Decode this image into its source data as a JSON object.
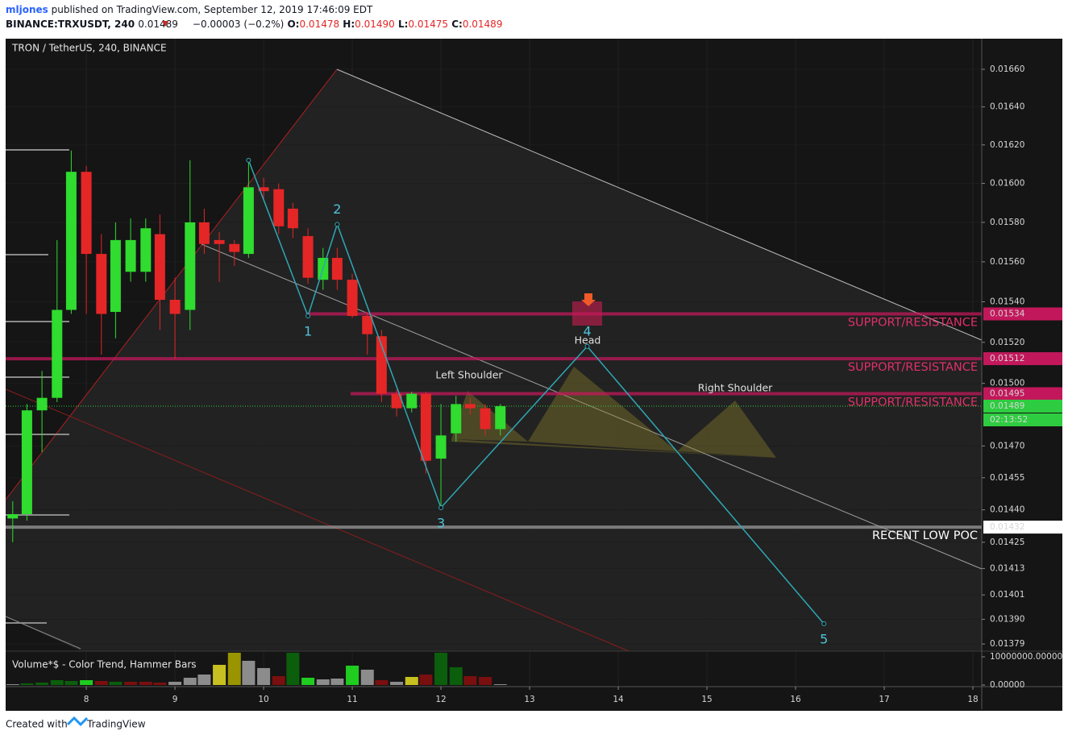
{
  "header": {
    "user": "mljones",
    "published": "published on TradingView.com, September 12, 2019 17:46:09 EDT",
    "symbol": "BINANCE:TRXUSDT, 240",
    "last": "0.01489",
    "change": "−0.00003 (−0.2%)",
    "o_label": "O:",
    "o": "0.01478",
    "h_label": "H:",
    "h": "0.01490",
    "l_label": "L:",
    "l": "0.01475",
    "c_label": "C:",
    "c": "0.01489"
  },
  "footer": {
    "created": "Created with",
    "brand": "TradingView"
  },
  "chart_data": {
    "type": "candlestick",
    "title": "TRON / TetherUS, 240, BINANCE",
    "x": [
      7.17,
      7.33,
      7.5,
      7.67,
      7.83,
      8,
      8.17,
      8.33,
      8.5,
      8.67,
      8.83,
      9,
      9.17,
      9.33,
      9.5,
      9.67,
      9.83,
      10,
      10.17,
      10.33,
      10.5,
      10.67,
      10.83,
      11,
      11.17,
      11.33,
      11.5,
      11.67,
      11.83,
      12,
      12.17,
      12.33,
      12.5,
      12.67
    ],
    "open": [
      0.01436,
      0.01438,
      0.01487,
      0.01493,
      0.01536,
      0.01606,
      0.01564,
      0.01535,
      0.01555,
      0.01555,
      0.01574,
      0.01541,
      0.01536,
      0.0158,
      0.01571,
      0.01569,
      0.01564,
      0.01598,
      0.01597,
      0.01587,
      0.01573,
      0.01551,
      0.01562,
      0.01551,
      0.01533,
      0.01523,
      0.01495,
      0.01488,
      0.01495,
      0.01464,
      0.01476,
      0.0149,
      0.01488,
      0.01478
    ],
    "high": [
      0.01444,
      0.0149,
      0.01506,
      0.01571,
      0.01617,
      0.01609,
      0.01574,
      0.0158,
      0.01582,
      0.01582,
      0.01584,
      0.01552,
      0.01612,
      0.01587,
      0.01575,
      0.01571,
      0.01613,
      0.01603,
      0.016,
      0.0159,
      0.01577,
      0.01567,
      0.01567,
      0.01554,
      0.01535,
      0.01526,
      0.01497,
      0.01496,
      0.01496,
      0.0149,
      0.01494,
      0.01493,
      0.0149,
      0.0149
    ],
    "low": [
      0.01425,
      0.01435,
      0.01467,
      0.01491,
      0.01534,
      0.01534,
      0.01514,
      0.01522,
      0.0155,
      0.0155,
      0.01526,
      0.01512,
      0.01526,
      0.01564,
      0.0155,
      0.01558,
      0.01562,
      0.01591,
      0.01574,
      0.01572,
      0.01549,
      0.01546,
      0.01546,
      0.01532,
      0.01514,
      0.01491,
      0.01484,
      0.01486,
      0.01457,
      0.01442,
      0.01472,
      0.01485,
      0.01475,
      0.01475
    ],
    "close": [
      0.01438,
      0.01487,
      0.01493,
      0.01536,
      0.01606,
      0.01564,
      0.01534,
      0.01571,
      0.01571,
      0.01577,
      0.01541,
      0.01534,
      0.0158,
      0.01569,
      0.01569,
      0.01565,
      0.01598,
      0.01596,
      0.01578,
      0.01577,
      0.01552,
      0.01562,
      0.01551,
      0.01533,
      0.01524,
      0.01495,
      0.01488,
      0.01495,
      0.01463,
      0.01475,
      0.0149,
      0.01488,
      0.01478,
      0.01489
    ],
    "up_color": "#2fdc2f",
    "down_color": "#e52626",
    "xlim": [
      7.09,
      18.1
    ],
    "xticks": [
      8,
      9,
      10,
      11,
      12,
      13,
      14,
      15,
      16,
      17,
      18
    ],
    "ylim": [
      0.013758,
      0.016765
    ],
    "log_scale": true,
    "grid": true,
    "yticks": [
      {
        "value": 0.0166,
        "label": "0.01660"
      },
      {
        "value": 0.0164,
        "label": "0.01640"
      },
      {
        "value": 0.0162,
        "label": "0.01620"
      },
      {
        "value": 0.016,
        "label": "0.01600"
      },
      {
        "value": 0.0158,
        "label": "0.01580"
      },
      {
        "value": 0.0156,
        "label": "0.01560"
      },
      {
        "value": 0.0154,
        "label": "0.01540"
      },
      {
        "value": 0.0152,
        "label": "0.01520"
      },
      {
        "value": 0.015,
        "label": "0.01500"
      },
      {
        "value": 0.0147,
        "label": "0.01470"
      },
      {
        "value": 0.01455,
        "label": "0.01455"
      },
      {
        "value": 0.0144,
        "label": "0.01440"
      },
      {
        "value": 0.01425,
        "label": "0.01425"
      },
      {
        "value": 0.01413,
        "label": "0.01413"
      },
      {
        "value": 0.01401,
        "label": "0.01401"
      },
      {
        "value": 0.0139,
        "label": "0.01390"
      },
      {
        "value": 0.01379,
        "label": "0.01379"
      }
    ],
    "current": {
      "value": 0.01489,
      "label": "0.01489",
      "countdown": "02:13:52",
      "color": "#2ecc40"
    },
    "levels": [
      {
        "value": 0.01534,
        "axis_label": "0.01534",
        "text": "SUPPORT/RESISTANCE",
        "color": "#c2185b",
        "text_color": "#e0306a"
      },
      {
        "value": 0.01512,
        "axis_label": "0.01512",
        "text": "SUPPORT/RESISTANCE",
        "color": "#c2185b",
        "text_color": "#e0306a"
      },
      {
        "value": 0.01495,
        "axis_label": "0.01495",
        "text": "SUPPORT/RESISTANCE",
        "color": "#c2185b",
        "text_color": "#e0306a"
      },
      {
        "value": 0.01432,
        "axis_label": "0.01432",
        "text": "RECENT LOW POC",
        "color": "#9a9a9a",
        "text_color": "#ffffff"
      }
    ],
    "wave": {
      "labels": [
        null,
        "1",
        "2",
        "3",
        "4",
        "5"
      ],
      "x": [
        9.83,
        10.5,
        10.83,
        12,
        13.65,
        16.32
      ],
      "y": [
        0.01612,
        0.01533,
        0.01579,
        0.01441,
        0.01518,
        0.01388
      ],
      "color": "#2fa7b5"
    },
    "annotations": [
      "Left Shoulder",
      "Head",
      "Right Shoulder"
    ],
    "volume": {
      "title": "Volume*$ - Color Trend, Hammer Bars",
      "values": [
        286000,
        572000,
        858000,
        1716000,
        1430000,
        1716000,
        1430000,
        1144000,
        1144000,
        1144000,
        858000,
        1144000,
        2574000,
        3718000,
        7150000,
        11440000,
        8580000,
        6006000,
        3146000,
        11440000,
        2574000,
        2002000,
        2288000,
        6864000,
        5434000,
        1716000,
        1144000,
        2860000,
        3718000,
        11440000,
        6292000,
        3146000,
        2860000,
        286000
      ],
      "colors": [
        "#8c8c8c",
        "#0b5e0b",
        "#0b5e0b",
        "#0b5e0b",
        "#0b5e0b",
        "#1fcc1f",
        "#7a0f0f",
        "#0b5e0b",
        "#7a0f0f",
        "#7a0f0f",
        "#7a0f0f",
        "#8c8c8c",
        "#8c8c8c",
        "#8c8c8c",
        "#c8c020",
        "#9a9400",
        "#8c8c8c",
        "#8c8c8c",
        "#7a0f0f",
        "#0b5e0b",
        "#1fcc1f",
        "#8c8c8c",
        "#8c8c8c",
        "#1fcc1f",
        "#8c8c8c",
        "#7a0f0f",
        "#8c8c8c",
        "#c8c020",
        "#7a0f0f",
        "#0b5e0b",
        "#0b5e0b",
        "#7a0f0f",
        "#7a0f0f",
        "#8c8c8c"
      ],
      "ylim": [
        -570000,
        12000000
      ],
      "yticks": [
        {
          "value": 10000000,
          "label": "10000000.00000"
        },
        {
          "value": 0,
          "label": "0.00000"
        }
      ]
    }
  }
}
